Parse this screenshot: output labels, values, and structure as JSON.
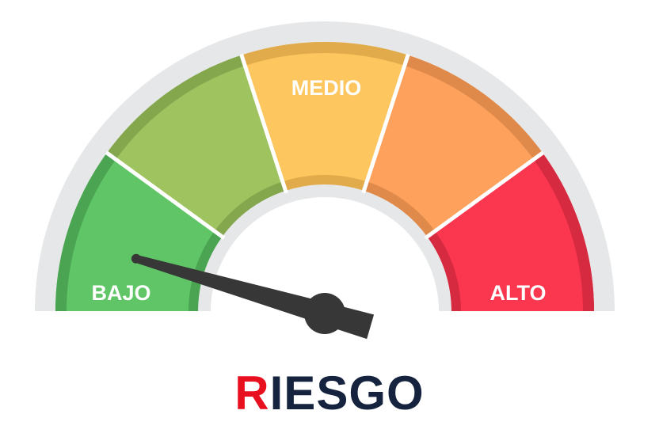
{
  "gauge": {
    "segments": [
      {
        "label": "BAJO",
        "color": "#5fc566",
        "edge": "#4aa451"
      },
      {
        "label": "",
        "color": "#9fc35f",
        "edge": "#84a74e"
      },
      {
        "label": "MEDIO",
        "color": "#fec65e",
        "edge": "#e1ab4c"
      },
      {
        "label": "",
        "color": "#fda15c",
        "edge": "#df8a4b"
      },
      {
        "label": "ALTO",
        "color": "#fb364f",
        "edge": "#d62a41"
      }
    ],
    "track_color": "#e6e7e8",
    "needle_color": "#373737",
    "level": 0.09
  },
  "title": {
    "accent": "R",
    "rest": "IESGO",
    "accent_color": "#e8101e",
    "rest_color": "#16233f"
  }
}
